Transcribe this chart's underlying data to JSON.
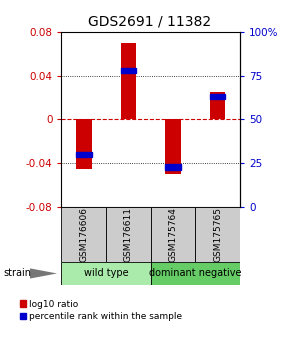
{
  "title": "GDS2691 / 11382",
  "samples": [
    "GSM176606",
    "GSM176611",
    "GSM175764",
    "GSM175765"
  ],
  "log10_ratios": [
    -0.045,
    0.07,
    -0.05,
    0.025
  ],
  "percentile_ranks": [
    0.3,
    0.78,
    0.23,
    0.63
  ],
  "ylim": [
    -0.08,
    0.08
  ],
  "yticks_left": [
    -0.08,
    -0.04,
    0,
    0.04,
    0.08
  ],
  "yticks_right": [
    0,
    25,
    50,
    75,
    100
  ],
  "bar_color": "#cc0000",
  "blue_color": "#0000cc",
  "zero_line_color": "#cc0000",
  "grid_color": "#000000",
  "groups": [
    {
      "label": "wild type",
      "indices": [
        0,
        1
      ],
      "color": "#aaeaaa"
    },
    {
      "label": "dominant negative",
      "indices": [
        2,
        3
      ],
      "color": "#66cc66"
    }
  ],
  "strain_label": "strain",
  "legend_red": "log10 ratio",
  "legend_blue": "percentile rank within the sample",
  "background_color": "#ffffff",
  "bar_width": 0.35,
  "title_fontsize": 10,
  "tick_fontsize": 7.5,
  "label_fontsize": 7
}
